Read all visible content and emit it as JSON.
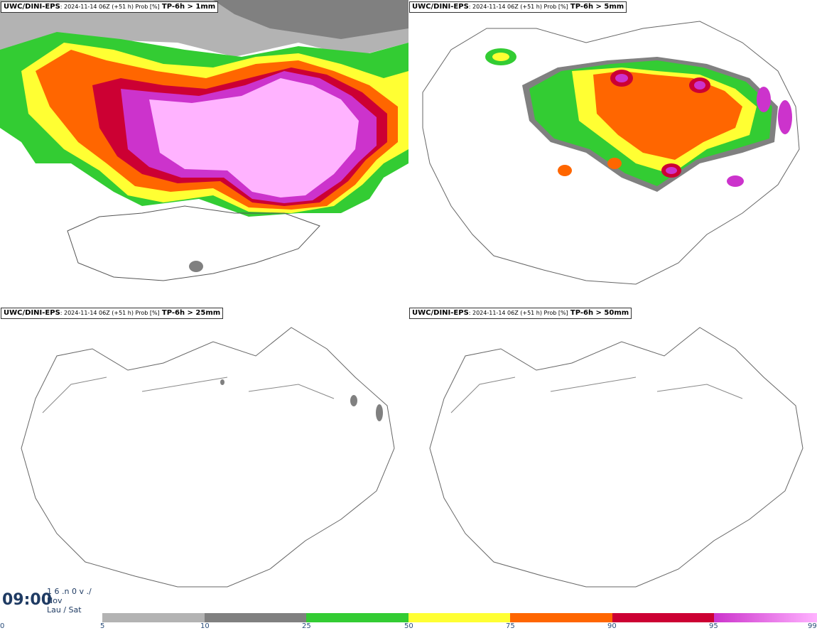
{
  "panels": [
    {
      "model": "UWC/DINI-EPS",
      "meta": ": 2024-11-14 06Z (+51 h) Prob [%]",
      "field": "TP-6h > 1mm"
    },
    {
      "model": "UWC/DINI-EPS",
      "meta": ": 2024-11-14 06Z (+51 h) Prob [%]",
      "field": "TP-6h > 5mm"
    },
    {
      "model": "UWC/DINI-EPS",
      "meta": ": 2024-11-14 06Z (+51 h) Prob [%]",
      "field": "TP-6h > 25mm"
    },
    {
      "model": "UWC/DINI-EPS",
      "meta": ": 2024-11-14 06Z (+51 h) Prob [%]",
      "field": "TP-6h > 50mm"
    }
  ],
  "time": {
    "clock": "09:00",
    "line1": "1 6 .n 0 v ./",
    "line2": "Nov",
    "line3": "Lau / Sat"
  },
  "legend": {
    "ticks": [
      "0",
      "5",
      "10",
      "25",
      "50",
      "75",
      "90",
      "95",
      "99"
    ],
    "colors": {
      "p5": "#b3b3b3",
      "p10": "#808080",
      "p25": "#33cc33",
      "p50": "#ffff33",
      "p75": "#ff6600",
      "p90": "#cc0033",
      "p95": "#cc33cc",
      "p99": "#ffb3ff"
    }
  }
}
